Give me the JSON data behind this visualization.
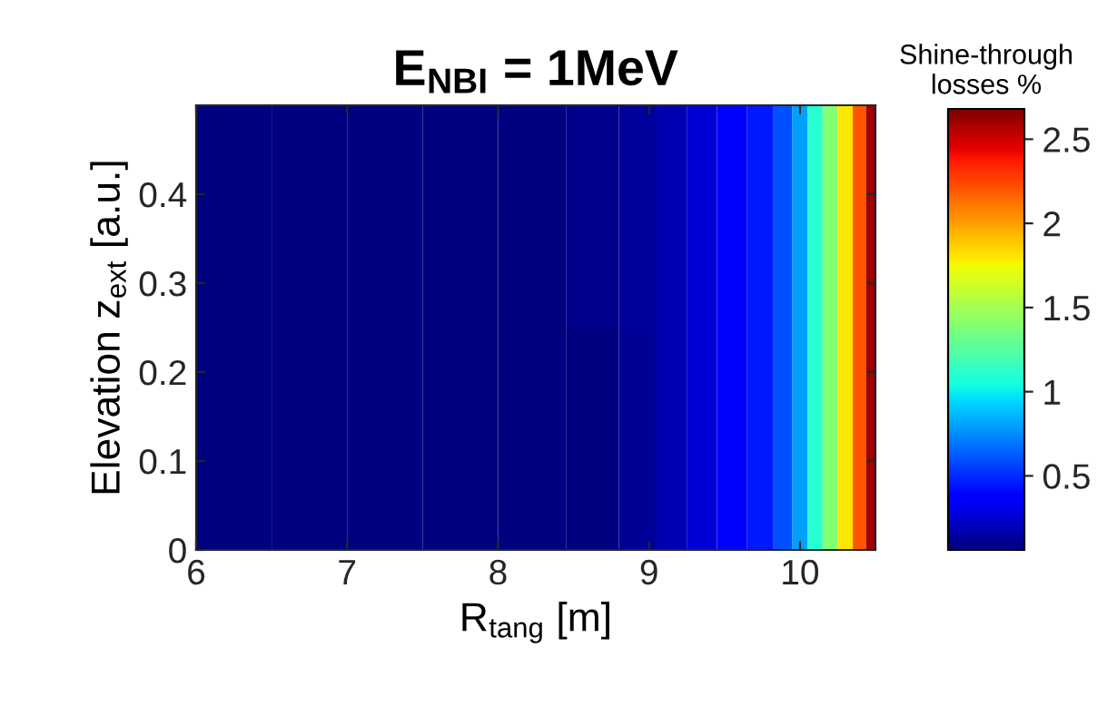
{
  "chart_data": {
    "type": "heatmap",
    "title": "E$_{NBI}$ = 1MeV",
    "xlabel": "R$_{tang}$ [m]",
    "ylabel": "Elevation z$_{ext}$ [a.u.]",
    "clabel": "Shine-through\nlosses %",
    "x": [
      6.25,
      6.75,
      7.25,
      7.75,
      8.25,
      8.65,
      8.95,
      9.15,
      9.35,
      9.55,
      9.75,
      9.9,
      10.0,
      10.1,
      10.2,
      10.3,
      10.4,
      10.475
    ],
    "y": [
      0.375,
      0.125
    ],
    "cells": [
      [
        0.06,
        0.06,
        0.06,
        0.06,
        0.06,
        0.1,
        0.13,
        0.18,
        0.26,
        0.35,
        0.45,
        0.6,
        0.8,
        1.1,
        1.4,
        1.8,
        2.2,
        2.6
      ],
      [
        0.06,
        0.06,
        0.06,
        0.06,
        0.06,
        0.07,
        0.12,
        0.18,
        0.26,
        0.35,
        0.45,
        0.6,
        0.8,
        1.1,
        1.4,
        1.8,
        2.2,
        2.6
      ]
    ],
    "xlim": [
      6,
      10.5
    ],
    "ylim": [
      0,
      0.5
    ],
    "xticks": [
      6,
      7,
      8,
      9,
      10
    ],
    "yticks": [
      0,
      0.1,
      0.2,
      0.3,
      0.4
    ],
    "clim": [
      0.06,
      2.68
    ],
    "cticks": [
      0.5,
      1,
      1.5,
      2,
      2.5
    ],
    "grid": false
  }
}
